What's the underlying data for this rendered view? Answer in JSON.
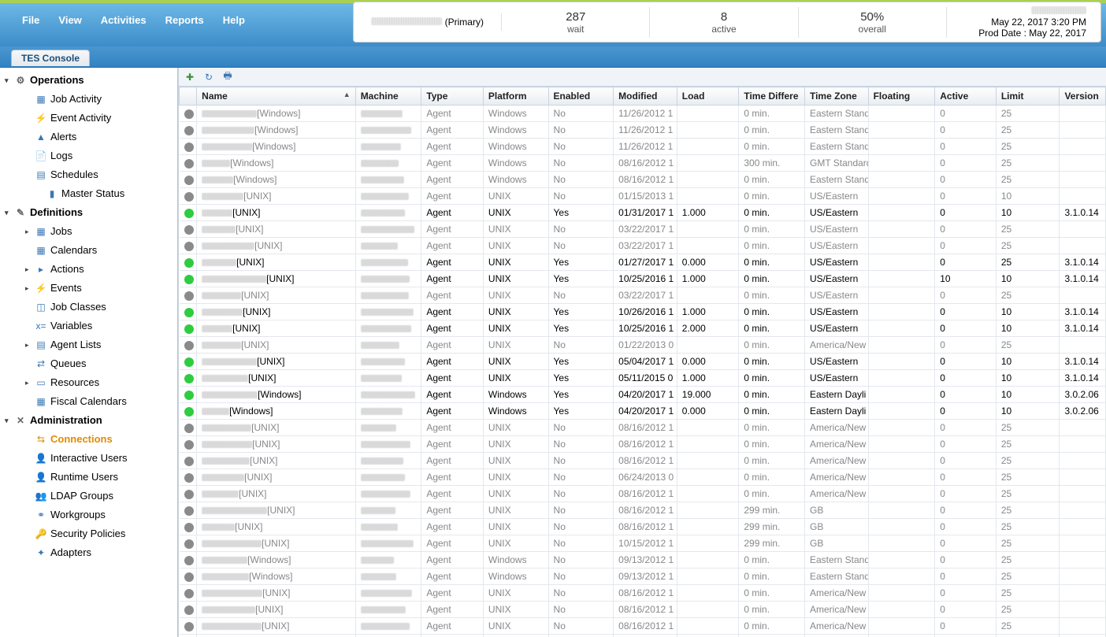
{
  "menu": {
    "file": "File",
    "view": "View",
    "activities": "Activities",
    "reports": "Reports",
    "help": "Help"
  },
  "status_bar": {
    "primary_label": "(Primary)",
    "wait_value": "287",
    "wait_label": "wait",
    "active_value": "8",
    "active_label": "active",
    "overall_value": "50%",
    "overall_label": "overall",
    "datetime": "May 22, 2017 3:20 PM",
    "prod_date": "Prod Date : May 22, 2017"
  },
  "tab_label": "TES Console",
  "sidebar": {
    "sections": [
      {
        "label": "Operations",
        "icon": "⚙",
        "items": [
          {
            "label": "Job Activity",
            "icon": "▦"
          },
          {
            "label": "Event Activity",
            "icon": "⚡"
          },
          {
            "label": "Alerts",
            "icon": "▲"
          },
          {
            "label": "Logs",
            "icon": "📄"
          },
          {
            "label": "Schedules",
            "icon": "▤"
          },
          {
            "label": "Master Status",
            "icon": "▮",
            "extra_indent": true
          }
        ]
      },
      {
        "label": "Definitions",
        "icon": "✎",
        "items": [
          {
            "label": "Jobs",
            "icon": "▦",
            "expandable": true
          },
          {
            "label": "Calendars",
            "icon": "▦"
          },
          {
            "label": "Actions",
            "icon": "▸",
            "expandable": true
          },
          {
            "label": "Events",
            "icon": "⚡",
            "expandable": true
          },
          {
            "label": "Job Classes",
            "icon": "◫"
          },
          {
            "label": "Variables",
            "icon": "x="
          },
          {
            "label": "Agent Lists",
            "icon": "▤",
            "expandable": true
          },
          {
            "label": "Queues",
            "icon": "⇄"
          },
          {
            "label": "Resources",
            "icon": "▭",
            "expandable": true
          },
          {
            "label": "Fiscal Calendars",
            "icon": "▦"
          }
        ]
      },
      {
        "label": "Administration",
        "icon": "✕",
        "items": [
          {
            "label": "Connections",
            "icon": "⇆",
            "active": true
          },
          {
            "label": "Interactive Users",
            "icon": "👤"
          },
          {
            "label": "Runtime Users",
            "icon": "👤"
          },
          {
            "label": "LDAP Groups",
            "icon": "👥"
          },
          {
            "label": "Workgroups",
            "icon": "⚭"
          },
          {
            "label": "Security Policies",
            "icon": "🔑"
          },
          {
            "label": "Adapters",
            "icon": "✦"
          }
        ]
      }
    ]
  },
  "columns": [
    {
      "key": "status",
      "label": "",
      "cls": "c-status"
    },
    {
      "key": "name",
      "label": "Name",
      "cls": "c-name",
      "sorted": true
    },
    {
      "key": "machine",
      "label": "Machine",
      "cls": "c-machine"
    },
    {
      "key": "type",
      "label": "Type",
      "cls": "c-type"
    },
    {
      "key": "platform",
      "label": "Platform",
      "cls": "c-platform"
    },
    {
      "key": "enabled",
      "label": "Enabled",
      "cls": "c-enabled"
    },
    {
      "key": "modified",
      "label": "Modified",
      "cls": "c-modified"
    },
    {
      "key": "load",
      "label": "Load",
      "cls": "c-load"
    },
    {
      "key": "timediff",
      "label": "Time Differe",
      "cls": "c-timediff"
    },
    {
      "key": "tz",
      "label": "Time Zone",
      "cls": "c-tz"
    },
    {
      "key": "floating",
      "label": "Floating",
      "cls": "c-floating"
    },
    {
      "key": "active",
      "label": "Active",
      "cls": "c-active"
    },
    {
      "key": "limit",
      "label": "Limit",
      "cls": "c-limit"
    },
    {
      "key": "version",
      "label": "Version",
      "cls": "c-version"
    }
  ],
  "status_colors": {
    "on": "#2ecc40",
    "off": "#8a8a8a"
  },
  "rows": [
    {
      "s": "off",
      "suffix": "[Windows]",
      "type": "Agent",
      "platform": "Windows",
      "enabled": "No",
      "modified": "11/26/2012 1",
      "load": "",
      "timediff": "0 min.",
      "tz": "Eastern Stand",
      "floating": "",
      "active": "0",
      "limit": "25",
      "version": ""
    },
    {
      "s": "off",
      "suffix": "[Windows]",
      "type": "Agent",
      "platform": "Windows",
      "enabled": "No",
      "modified": "11/26/2012 1",
      "load": "",
      "timediff": "0 min.",
      "tz": "Eastern Stand",
      "floating": "",
      "active": "0",
      "limit": "25",
      "version": ""
    },
    {
      "s": "off",
      "suffix": "[Windows]",
      "type": "Agent",
      "platform": "Windows",
      "enabled": "No",
      "modified": "11/26/2012 1",
      "load": "",
      "timediff": "0 min.",
      "tz": "Eastern Stand",
      "floating": "",
      "active": "0",
      "limit": "25",
      "version": ""
    },
    {
      "s": "off",
      "suffix": "[Windows]",
      "type": "Agent",
      "platform": "Windows",
      "enabled": "No",
      "modified": "08/16/2012 1",
      "load": "",
      "timediff": "300 min.",
      "tz": "GMT Standard",
      "floating": "",
      "active": "0",
      "limit": "25",
      "version": ""
    },
    {
      "s": "off",
      "suffix": "[Windows]",
      "type": "Agent",
      "platform": "Windows",
      "enabled": "No",
      "modified": "08/16/2012 1",
      "load": "",
      "timediff": "0 min.",
      "tz": "Eastern Stand",
      "floating": "",
      "active": "0",
      "limit": "25",
      "version": ""
    },
    {
      "s": "off",
      "suffix": "[UNIX]",
      "type": "Agent",
      "platform": "UNIX",
      "enabled": "No",
      "modified": "01/15/2013 1",
      "load": "",
      "timediff": "0 min.",
      "tz": "US/Eastern",
      "floating": "",
      "active": "0",
      "limit": "10",
      "version": ""
    },
    {
      "s": "on",
      "suffix": "[UNIX]",
      "type": "Agent",
      "platform": "UNIX",
      "enabled": "Yes",
      "modified": "01/31/2017 1",
      "load": "1.000",
      "timediff": "0 min.",
      "tz": "US/Eastern",
      "floating": "",
      "active": "0",
      "limit": "10",
      "version": "3.1.0.14"
    },
    {
      "s": "off",
      "suffix": "[UNIX]",
      "type": "Agent",
      "platform": "UNIX",
      "enabled": "No",
      "modified": "03/22/2017 1",
      "load": "",
      "timediff": "0 min.",
      "tz": "US/Eastern",
      "floating": "",
      "active": "0",
      "limit": "25",
      "version": ""
    },
    {
      "s": "off",
      "suffix": "[UNIX]",
      "type": "Agent",
      "platform": "UNIX",
      "enabled": "No",
      "modified": "03/22/2017 1",
      "load": "",
      "timediff": "0 min.",
      "tz": "US/Eastern",
      "floating": "",
      "active": "0",
      "limit": "25",
      "version": ""
    },
    {
      "s": "on",
      "suffix": "[UNIX]",
      "type": "Agent",
      "platform": "UNIX",
      "enabled": "Yes",
      "modified": "01/27/2017 1",
      "load": "0.000",
      "timediff": "0 min.",
      "tz": "US/Eastern",
      "floating": "",
      "active": "0",
      "limit": "25",
      "version": "3.1.0.14"
    },
    {
      "s": "on",
      "suffix": "[UNIX]",
      "type": "Agent",
      "platform": "UNIX",
      "enabled": "Yes",
      "modified": "10/25/2016 1",
      "load": "1.000",
      "timediff": "0 min.",
      "tz": "US/Eastern",
      "floating": "",
      "active": "10",
      "limit": "10",
      "version": "3.1.0.14"
    },
    {
      "s": "off",
      "suffix": "[UNIX]",
      "type": "Agent",
      "platform": "UNIX",
      "enabled": "No",
      "modified": "03/22/2017 1",
      "load": "",
      "timediff": "0 min.",
      "tz": "US/Eastern",
      "floating": "",
      "active": "0",
      "limit": "25",
      "version": ""
    },
    {
      "s": "on",
      "suffix": "[UNIX]",
      "type": "Agent",
      "platform": "UNIX",
      "enabled": "Yes",
      "modified": "10/26/2016 1",
      "load": "1.000",
      "timediff": "0 min.",
      "tz": "US/Eastern",
      "floating": "",
      "active": "0",
      "limit": "10",
      "version": "3.1.0.14"
    },
    {
      "s": "on",
      "suffix": "[UNIX]",
      "type": "Agent",
      "platform": "UNIX",
      "enabled": "Yes",
      "modified": "10/25/2016 1",
      "load": "2.000",
      "timediff": "0 min.",
      "tz": "US/Eastern",
      "floating": "",
      "active": "0",
      "limit": "10",
      "version": "3.1.0.14"
    },
    {
      "s": "off",
      "suffix": "[UNIX]",
      "type": "Agent",
      "platform": "UNIX",
      "enabled": "No",
      "modified": "01/22/2013 0",
      "load": "",
      "timediff": "0 min.",
      "tz": "America/New",
      "floating": "",
      "active": "0",
      "limit": "25",
      "version": ""
    },
    {
      "s": "on",
      "suffix": "[UNIX]",
      "type": "Agent",
      "platform": "UNIX",
      "enabled": "Yes",
      "modified": "05/04/2017 1",
      "load": "0.000",
      "timediff": "0 min.",
      "tz": "US/Eastern",
      "floating": "",
      "active": "0",
      "limit": "10",
      "version": "3.1.0.14"
    },
    {
      "s": "on",
      "suffix": "[UNIX]",
      "type": "Agent",
      "platform": "UNIX",
      "enabled": "Yes",
      "modified": "05/11/2015 0",
      "load": "1.000",
      "timediff": "0 min.",
      "tz": "US/Eastern",
      "floating": "",
      "active": "0",
      "limit": "10",
      "version": "3.1.0.14"
    },
    {
      "s": "on",
      "suffix": "[Windows]",
      "type": "Agent",
      "platform": "Windows",
      "enabled": "Yes",
      "modified": "04/20/2017 1",
      "load": "19.000",
      "timediff": "0 min.",
      "tz": "Eastern Dayli",
      "floating": "",
      "active": "0",
      "limit": "10",
      "version": "3.0.2.06"
    },
    {
      "s": "on",
      "suffix": "[Windows]",
      "type": "Agent",
      "platform": "Windows",
      "enabled": "Yes",
      "modified": "04/20/2017 1",
      "load": "0.000",
      "timediff": "0 min.",
      "tz": "Eastern Dayli",
      "floating": "",
      "active": "0",
      "limit": "10",
      "version": "3.0.2.06"
    },
    {
      "s": "off",
      "suffix": "[UNIX]",
      "type": "Agent",
      "platform": "UNIX",
      "enabled": "No",
      "modified": "08/16/2012 1",
      "load": "",
      "timediff": "0 min.",
      "tz": "America/New",
      "floating": "",
      "active": "0",
      "limit": "25",
      "version": ""
    },
    {
      "s": "off",
      "suffix": "[UNIX]",
      "type": "Agent",
      "platform": "UNIX",
      "enabled": "No",
      "modified": "08/16/2012 1",
      "load": "",
      "timediff": "0 min.",
      "tz": "America/New",
      "floating": "",
      "active": "0",
      "limit": "25",
      "version": ""
    },
    {
      "s": "off",
      "suffix": "[UNIX]",
      "type": "Agent",
      "platform": "UNIX",
      "enabled": "No",
      "modified": "08/16/2012 1",
      "load": "",
      "timediff": "0 min.",
      "tz": "America/New",
      "floating": "",
      "active": "0",
      "limit": "25",
      "version": ""
    },
    {
      "s": "off",
      "suffix": "[UNIX]",
      "type": "Agent",
      "platform": "UNIX",
      "enabled": "No",
      "modified": "06/24/2013 0",
      "load": "",
      "timediff": "0 min.",
      "tz": "America/New",
      "floating": "",
      "active": "0",
      "limit": "25",
      "version": ""
    },
    {
      "s": "off",
      "suffix": "[UNIX]",
      "type": "Agent",
      "platform": "UNIX",
      "enabled": "No",
      "modified": "08/16/2012 1",
      "load": "",
      "timediff": "0 min.",
      "tz": "America/New",
      "floating": "",
      "active": "0",
      "limit": "25",
      "version": ""
    },
    {
      "s": "off",
      "suffix": "[UNIX]",
      "type": "Agent",
      "platform": "UNIX",
      "enabled": "No",
      "modified": "08/16/2012 1",
      "load": "",
      "timediff": "299 min.",
      "tz": "GB",
      "floating": "",
      "active": "0",
      "limit": "25",
      "version": ""
    },
    {
      "s": "off",
      "suffix": "[UNIX]",
      "type": "Agent",
      "platform": "UNIX",
      "enabled": "No",
      "modified": "08/16/2012 1",
      "load": "",
      "timediff": "299 min.",
      "tz": "GB",
      "floating": "",
      "active": "0",
      "limit": "25",
      "version": ""
    },
    {
      "s": "off",
      "suffix": "[UNIX]",
      "type": "Agent",
      "platform": "UNIX",
      "enabled": "No",
      "modified": "10/15/2012 1",
      "load": "",
      "timediff": "299 min.",
      "tz": "GB",
      "floating": "",
      "active": "0",
      "limit": "25",
      "version": ""
    },
    {
      "s": "off",
      "suffix": "[Windows]",
      "type": "Agent",
      "platform": "Windows",
      "enabled": "No",
      "modified": "09/13/2012 1",
      "load": "",
      "timediff": "0 min.",
      "tz": "Eastern Stand",
      "floating": "",
      "active": "0",
      "limit": "25",
      "version": ""
    },
    {
      "s": "off",
      "suffix": "[Windows]",
      "type": "Agent",
      "platform": "Windows",
      "enabled": "No",
      "modified": "09/13/2012 1",
      "load": "",
      "timediff": "0 min.",
      "tz": "Eastern Stand",
      "floating": "",
      "active": "0",
      "limit": "25",
      "version": ""
    },
    {
      "s": "off",
      "suffix": "[UNIX]",
      "type": "Agent",
      "platform": "UNIX",
      "enabled": "No",
      "modified": "08/16/2012 1",
      "load": "",
      "timediff": "0 min.",
      "tz": "America/New",
      "floating": "",
      "active": "0",
      "limit": "25",
      "version": ""
    },
    {
      "s": "off",
      "suffix": "[UNIX]",
      "type": "Agent",
      "platform": "UNIX",
      "enabled": "No",
      "modified": "08/16/2012 1",
      "load": "",
      "timediff": "0 min.",
      "tz": "America/New",
      "floating": "",
      "active": "0",
      "limit": "25",
      "version": ""
    },
    {
      "s": "off",
      "suffix": "[UNIX]",
      "type": "Agent",
      "platform": "UNIX",
      "enabled": "No",
      "modified": "08/16/2012 1",
      "load": "",
      "timediff": "0 min.",
      "tz": "America/New",
      "floating": "",
      "active": "0",
      "limit": "25",
      "version": ""
    },
    {
      "s": "off",
      "suffix": "[UNIX]",
      "type": "Agent",
      "platform": "UNIX",
      "enabled": "No",
      "modified": "08/16/2012 1",
      "load": "",
      "timediff": "0 min.",
      "tz": "America/New",
      "floating": "",
      "active": "0",
      "limit": "25",
      "version": ""
    }
  ]
}
